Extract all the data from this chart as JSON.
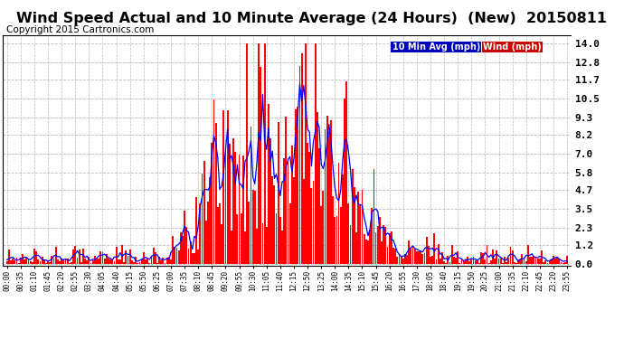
{
  "title": "Wind Speed Actual and 10 Minute Average (24 Hours)  (New)  20150811",
  "copyright": "Copyright 2015 Cartronics.com",
  "legend_avg_label": "10 Min Avg (mph)",
  "legend_wind_label": "Wind (mph)",
  "yticks": [
    0.0,
    1.2,
    2.3,
    3.5,
    4.7,
    5.8,
    7.0,
    8.2,
    9.3,
    10.5,
    11.7,
    12.8,
    14.0
  ],
  "ymax": 14.5,
  "ymin": -0.15,
  "bg_color": "#ffffff",
  "grid_color": "#bbbbbb",
  "bar_color": "#ff0000",
  "line_color": "#0000ff",
  "title_fontsize": 11.5,
  "copyright_fontsize": 7.5
}
